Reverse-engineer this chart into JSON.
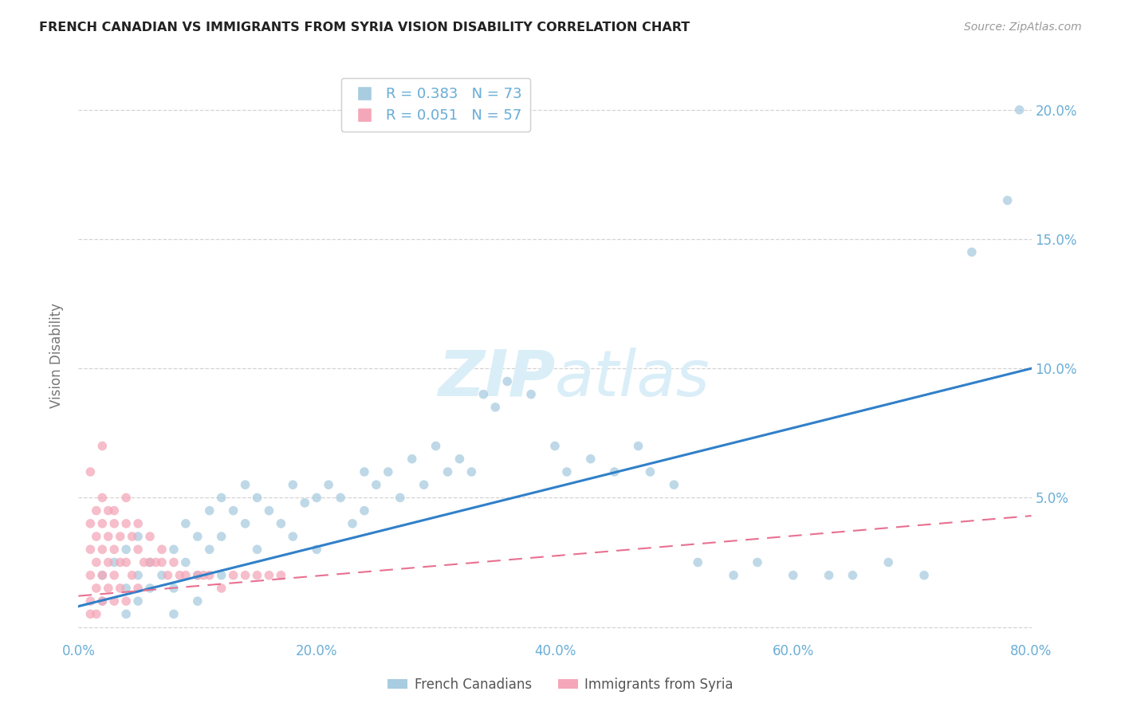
{
  "title": "FRENCH CANADIAN VS IMMIGRANTS FROM SYRIA VISION DISABILITY CORRELATION CHART",
  "source": "Source: ZipAtlas.com",
  "ylabel": "Vision Disability",
  "xlabel": "",
  "xlim": [
    0,
    0.8
  ],
  "ylim": [
    -0.005,
    0.215
  ],
  "yticks": [
    0.0,
    0.05,
    0.1,
    0.15,
    0.2
  ],
  "ytick_labels_left": [
    "",
    "",
    "",
    "",
    ""
  ],
  "ytick_labels_right": [
    "",
    "5.0%",
    "10.0%",
    "15.0%",
    "20.0%"
  ],
  "xticks": [
    0.0,
    0.1,
    0.2,
    0.3,
    0.4,
    0.5,
    0.6,
    0.7,
    0.8
  ],
  "xtick_labels": [
    "0.0%",
    "",
    "20.0%",
    "",
    "40.0%",
    "",
    "60.0%",
    "",
    "80.0%"
  ],
  "legend_blue_r": "R = 0.383",
  "legend_blue_n": "N = 73",
  "legend_pink_r": "R = 0.051",
  "legend_pink_n": "N = 57",
  "blue_color": "#a8cce0",
  "pink_color": "#f4a7b9",
  "blue_line_color": "#3080c8",
  "pink_line_color": "#e87090",
  "title_color": "#333333",
  "axis_label_color": "#777777",
  "tick_label_color": "#6baed6",
  "watermark_color": "#daeef8",
  "blue_scatter_x": [
    0.02,
    0.02,
    0.03,
    0.04,
    0.04,
    0.04,
    0.05,
    0.05,
    0.05,
    0.06,
    0.06,
    0.07,
    0.08,
    0.08,
    0.08,
    0.09,
    0.09,
    0.1,
    0.1,
    0.1,
    0.11,
    0.11,
    0.12,
    0.12,
    0.12,
    0.13,
    0.14,
    0.14,
    0.15,
    0.15,
    0.16,
    0.17,
    0.18,
    0.18,
    0.19,
    0.2,
    0.2,
    0.21,
    0.22,
    0.23,
    0.24,
    0.24,
    0.25,
    0.26,
    0.27,
    0.28,
    0.29,
    0.3,
    0.31,
    0.32,
    0.33,
    0.34,
    0.35,
    0.36,
    0.38,
    0.4,
    0.41,
    0.43,
    0.45,
    0.47,
    0.48,
    0.5,
    0.52,
    0.55,
    0.57,
    0.6,
    0.63,
    0.65,
    0.68,
    0.71,
    0.75,
    0.78,
    0.79
  ],
  "blue_scatter_y": [
    0.02,
    0.01,
    0.025,
    0.015,
    0.005,
    0.03,
    0.02,
    0.01,
    0.035,
    0.025,
    0.015,
    0.02,
    0.03,
    0.015,
    0.005,
    0.04,
    0.025,
    0.035,
    0.02,
    0.01,
    0.045,
    0.03,
    0.05,
    0.035,
    0.02,
    0.045,
    0.055,
    0.04,
    0.05,
    0.03,
    0.045,
    0.04,
    0.055,
    0.035,
    0.048,
    0.05,
    0.03,
    0.055,
    0.05,
    0.04,
    0.06,
    0.045,
    0.055,
    0.06,
    0.05,
    0.065,
    0.055,
    0.07,
    0.06,
    0.065,
    0.06,
    0.09,
    0.085,
    0.095,
    0.09,
    0.07,
    0.06,
    0.065,
    0.06,
    0.07,
    0.06,
    0.055,
    0.025,
    0.02,
    0.025,
    0.02,
    0.02,
    0.02,
    0.025,
    0.02,
    0.145,
    0.165,
    0.2
  ],
  "pink_scatter_x": [
    0.01,
    0.01,
    0.01,
    0.01,
    0.01,
    0.015,
    0.015,
    0.015,
    0.015,
    0.015,
    0.02,
    0.02,
    0.02,
    0.02,
    0.02,
    0.025,
    0.025,
    0.025,
    0.025,
    0.03,
    0.03,
    0.03,
    0.03,
    0.035,
    0.035,
    0.035,
    0.04,
    0.04,
    0.04,
    0.045,
    0.045,
    0.05,
    0.05,
    0.055,
    0.06,
    0.065,
    0.07,
    0.075,
    0.08,
    0.085,
    0.09,
    0.1,
    0.105,
    0.11,
    0.12,
    0.13,
    0.14,
    0.15,
    0.16,
    0.17,
    0.01,
    0.02,
    0.03,
    0.04,
    0.05,
    0.06,
    0.07
  ],
  "pink_scatter_y": [
    0.04,
    0.03,
    0.02,
    0.01,
    0.005,
    0.045,
    0.035,
    0.025,
    0.015,
    0.005,
    0.05,
    0.04,
    0.03,
    0.02,
    0.01,
    0.045,
    0.035,
    0.025,
    0.015,
    0.04,
    0.03,
    0.02,
    0.01,
    0.035,
    0.025,
    0.015,
    0.04,
    0.025,
    0.01,
    0.035,
    0.02,
    0.03,
    0.015,
    0.025,
    0.025,
    0.025,
    0.025,
    0.02,
    0.025,
    0.02,
    0.02,
    0.02,
    0.02,
    0.02,
    0.015,
    0.02,
    0.02,
    0.02,
    0.02,
    0.02,
    0.06,
    0.07,
    0.045,
    0.05,
    0.04,
    0.035,
    0.03
  ],
  "blue_line_x": [
    0.0,
    0.8
  ],
  "blue_line_y": [
    0.008,
    0.1
  ],
  "pink_line_x": [
    0.0,
    0.8
  ],
  "pink_line_y": [
    0.012,
    0.043
  ],
  "background_color": "#ffffff",
  "grid_color": "#d0d0d0"
}
